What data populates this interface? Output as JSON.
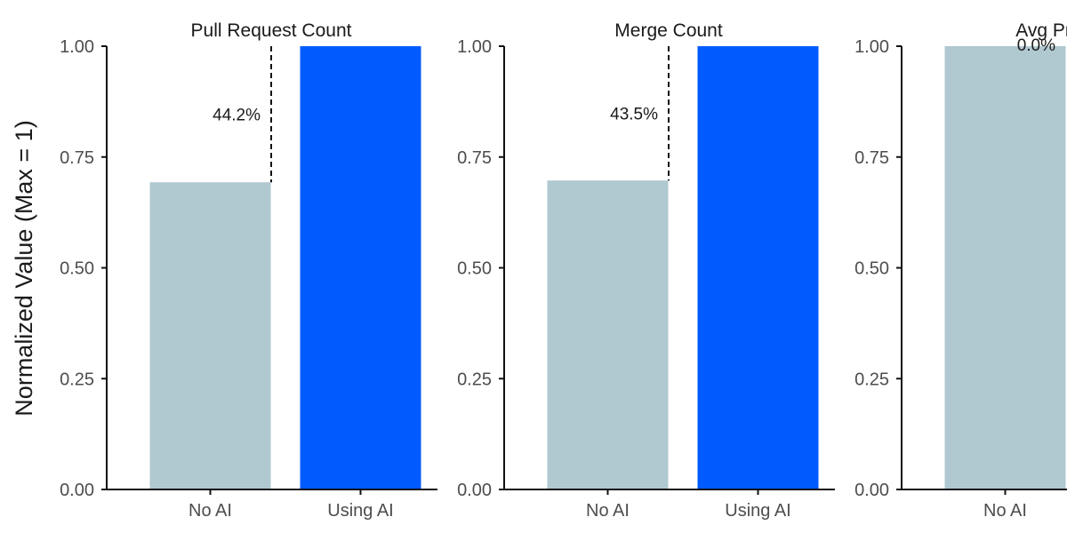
{
  "colors": {
    "no_ai": "#b0c8d0",
    "using_ai": "#005bff",
    "axis": "#111111",
    "tick_text": "#4d4d4d",
    "title_text": "#1a1a1a"
  },
  "chart_data": [
    {
      "type": "bar",
      "title": "Pull Request Count",
      "ylabel": "Normalized Value (Max = 1)",
      "ylim": [
        0,
        1
      ],
      "yticks": [
        "0.00",
        "0.25",
        "0.50",
        "0.75",
        "1.00"
      ],
      "categories": [
        "No AI",
        "Using AI"
      ],
      "values": [
        0.693,
        1.0
      ],
      "annotation": "44.2%",
      "grid": false,
      "legend": "none"
    },
    {
      "type": "bar",
      "title": "Merge Count",
      "ylabel": "",
      "ylim": [
        0,
        1
      ],
      "yticks": [
        "0.00",
        "0.25",
        "0.50",
        "0.75",
        "1.00"
      ],
      "categories": [
        "No AI",
        "Using AI"
      ],
      "values": [
        0.697,
        1.0
      ],
      "annotation": "43.5%",
      "grid": false,
      "legend": "none"
    },
    {
      "type": "bar",
      "title": "Avg Pr To M",
      "ylabel": "",
      "ylim": [
        0,
        1
      ],
      "yticks": [
        "0.00",
        "0.25",
        "0.50",
        "0.75",
        "1.00"
      ],
      "categories": [
        "No AI"
      ],
      "values": [
        1.0
      ],
      "annotation": "0.0%",
      "grid": false,
      "legend": "none"
    }
  ]
}
